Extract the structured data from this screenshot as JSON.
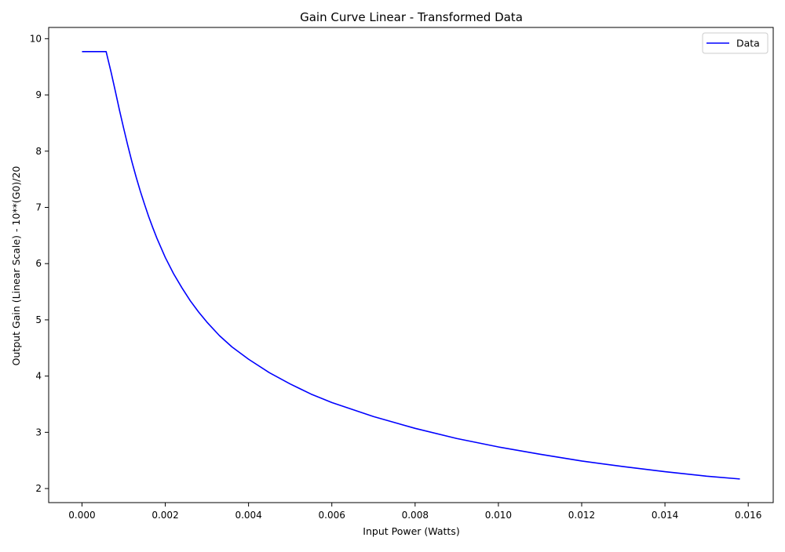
{
  "chart_data": {
    "type": "line",
    "title": "Gain Curve Linear - Transformed Data",
    "xlabel": "Input Power (Watts)",
    "ylabel": "Output Gain (Linear Scale) - 10**(G0)/20",
    "xlim": [
      -0.0008,
      0.0166
    ],
    "ylim": [
      1.75,
      10.2
    ],
    "grid": false,
    "legend_position": "top-right",
    "x_ticks": [
      "0.000",
      "0.002",
      "0.004",
      "0.006",
      "0.008",
      "0.010",
      "0.012",
      "0.014",
      "0.016"
    ],
    "y_ticks": [
      "2",
      "3",
      "4",
      "5",
      "6",
      "7",
      "8",
      "9",
      "10"
    ],
    "colors": {
      "line": "#0000ff",
      "axes": "#000000",
      "legend_border": "#cccccc"
    },
    "series": [
      {
        "name": "Data",
        "x": [
          0.0,
          0.00058,
          0.0007,
          0.0008,
          0.0009,
          0.001,
          0.0011,
          0.0012,
          0.0013,
          0.0014,
          0.0015,
          0.0016,
          0.0017,
          0.0018,
          0.002,
          0.0022,
          0.0024,
          0.0026,
          0.0028,
          0.003,
          0.0033,
          0.0036,
          0.004,
          0.0045,
          0.005,
          0.0055,
          0.006,
          0.007,
          0.008,
          0.009,
          0.01,
          0.011,
          0.012,
          0.013,
          0.014,
          0.015,
          0.0158
        ],
        "y": [
          9.77,
          9.77,
          9.4,
          9.07,
          8.73,
          8.41,
          8.1,
          7.81,
          7.54,
          7.29,
          7.06,
          6.84,
          6.64,
          6.45,
          6.11,
          5.82,
          5.57,
          5.34,
          5.14,
          4.96,
          4.72,
          4.52,
          4.3,
          4.06,
          3.86,
          3.68,
          3.53,
          3.28,
          3.07,
          2.89,
          2.74,
          2.61,
          2.49,
          2.39,
          2.3,
          2.22,
          2.17
        ]
      }
    ]
  }
}
